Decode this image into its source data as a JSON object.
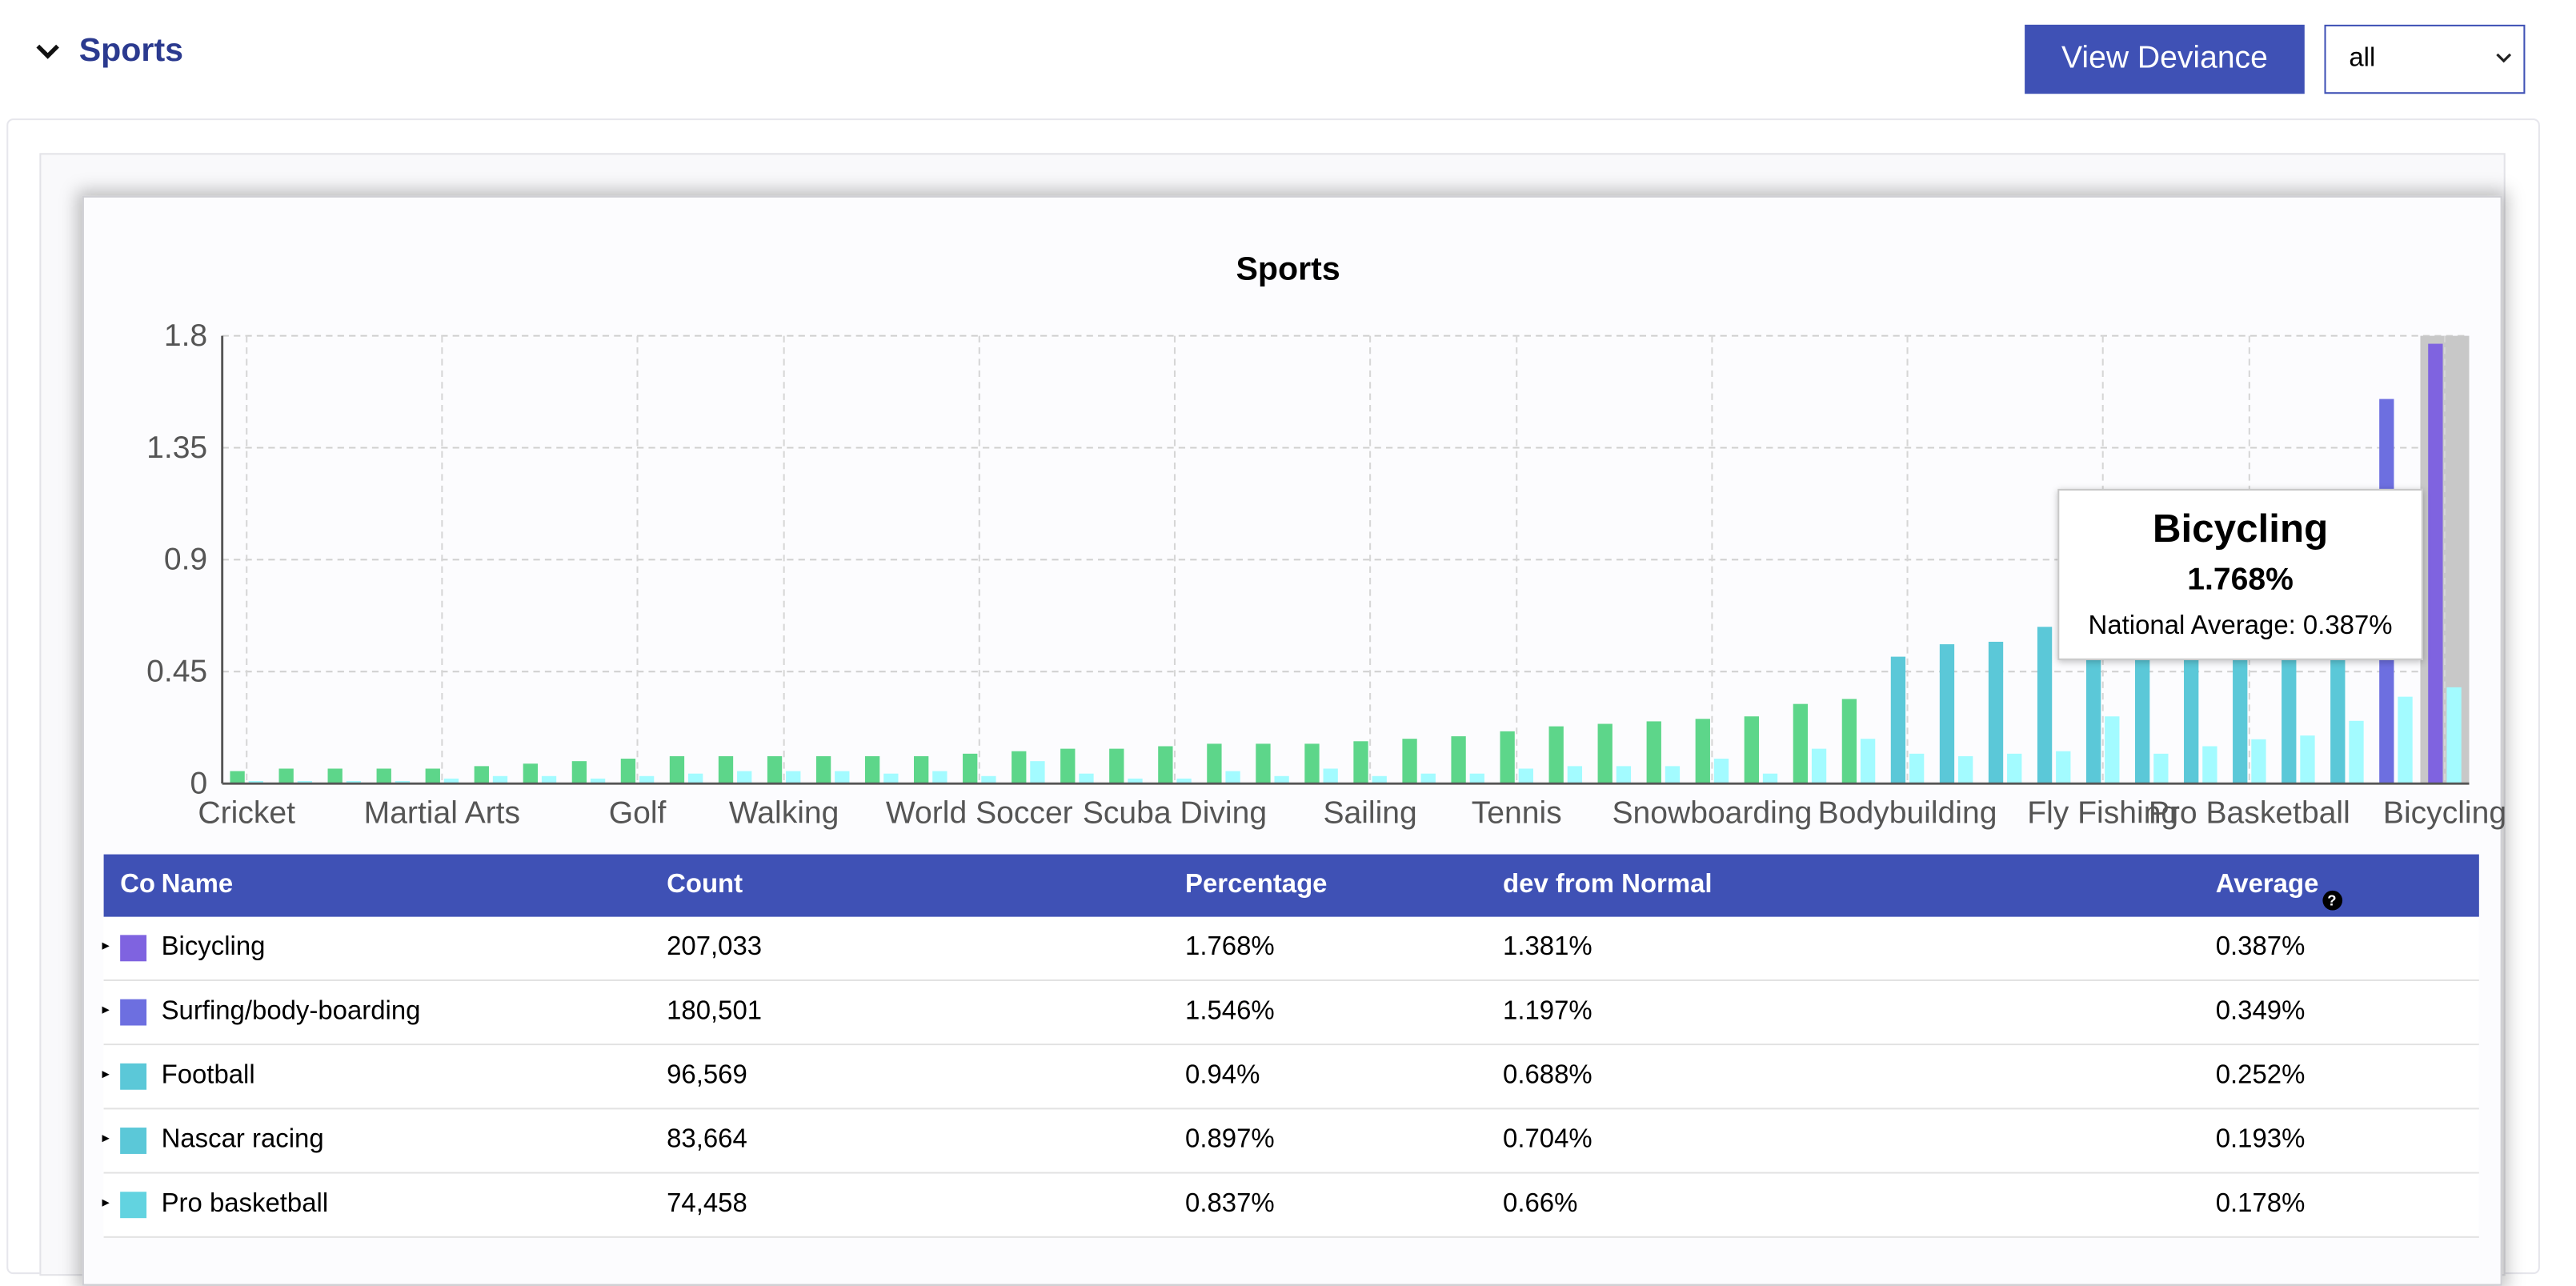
{
  "section": {
    "title": "Sports",
    "collapse_icon": "chevron-down-icon"
  },
  "toolbar": {
    "view_deviance_label": "View Deviance",
    "filter_value": "all"
  },
  "colors": {
    "header_bg": "#3f51b5",
    "series_primary_green": "#5dd68a",
    "series_primary_teal": "#5bc8d8",
    "series_primary_blue": "#6d6fe0",
    "series_primary_violet": "#7f63e0",
    "series_national": "#a3fbff"
  },
  "chart_data": {
    "type": "bar",
    "title": "Sports",
    "ylim": [
      0,
      1.8
    ],
    "yticks": [
      "0",
      "0.45",
      "0.9",
      "1.35",
      "1.8"
    ],
    "grid": true,
    "x_tick_labels": [
      "Cricket",
      "Martial Arts",
      "Golf",
      "Walking",
      "World Soccer",
      "Scuba Diving",
      "Sailing",
      "Tennis",
      "Snowboarding",
      "Bodybuilding",
      "Fly Fishing",
      "Pro Basketball",
      "Bicycling"
    ],
    "series": [
      {
        "values": [
          0.05,
          0.06,
          0.06,
          0.06,
          0.06,
          0.07,
          0.08,
          0.09,
          0.1,
          0.11,
          0.11,
          0.11,
          0.11,
          0.11,
          0.11,
          0.12,
          0.13,
          0.14,
          0.14,
          0.15,
          0.16,
          0.16,
          0.16,
          0.17,
          0.18,
          0.19,
          0.21,
          0.23,
          0.24,
          0.25,
          0.26,
          0.27,
          0.32,
          0.34,
          0.51,
          0.56,
          0.57,
          0.63,
          0.66,
          0.71,
          0.8,
          0.837,
          0.897,
          0.94,
          1.546,
          1.768
        ]
      },
      {
        "values": [
          0.01,
          0.01,
          0.01,
          0.01,
          0.02,
          0.03,
          0.03,
          0.02,
          0.03,
          0.04,
          0.05,
          0.05,
          0.05,
          0.04,
          0.05,
          0.03,
          0.09,
          0.04,
          0.02,
          0.02,
          0.05,
          0.03,
          0.06,
          0.03,
          0.04,
          0.04,
          0.06,
          0.07,
          0.07,
          0.07,
          0.1,
          0.04,
          0.14,
          0.18,
          0.12,
          0.11,
          0.12,
          0.13,
          0.27,
          0.12,
          0.15,
          0.178,
          0.193,
          0.252,
          0.349,
          0.387
        ]
      }
    ],
    "tooltip": {
      "name": "Bicycling",
      "value": "1.768%",
      "national_average": "National Average: 0.387%"
    }
  },
  "table": {
    "headers": {
      "color": "Co",
      "name": "Name",
      "count": "Count",
      "percentage": "Percentage",
      "dev": "dev from Normal",
      "average": "Average",
      "help": "?"
    },
    "rows": [
      {
        "name": "Bicycling",
        "count": "207,033",
        "percentage": "1.768%",
        "dev": "1.381%",
        "average": "0.387%",
        "color": "#7f63e0"
      },
      {
        "name": "Surfing/body-boarding",
        "count": "180,501",
        "percentage": "1.546%",
        "dev": "1.197%",
        "average": "0.349%",
        "color": "#6d6fe0"
      },
      {
        "name": "Football",
        "count": "96,569",
        "percentage": "0.94%",
        "dev": "0.688%",
        "average": "0.252%",
        "color": "#5bc8d8"
      },
      {
        "name": "Nascar racing",
        "count": "83,664",
        "percentage": "0.897%",
        "dev": "0.704%",
        "average": "0.193%",
        "color": "#5bc8d8"
      },
      {
        "name": "Pro basketball",
        "count": "74,458",
        "percentage": "0.837%",
        "dev": "0.66%",
        "average": "0.178%",
        "color": "#62d3e0"
      }
    ]
  }
}
